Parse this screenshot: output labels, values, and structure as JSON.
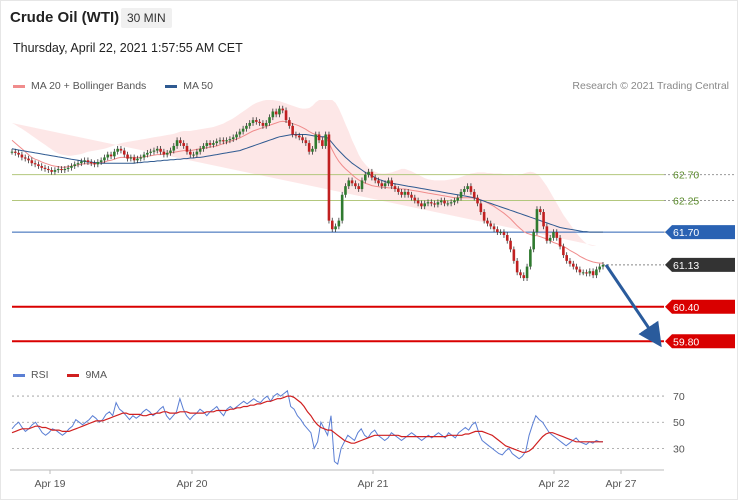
{
  "header": {
    "title": "Crude Oil (WTI)",
    "timeframe": "30 MIN",
    "datetime": "Thursday, April 22, 2021 1:57:55 AM CET",
    "research": "Research © 2021 Trading Central"
  },
  "colors": {
    "ma20": "#f08c8c",
    "ma50": "#2f5a91",
    "band": "#fde3e3",
    "candle_up": "#2f7a2f",
    "candle_down": "#c02020",
    "resistance": "#b3c77d",
    "pivot": "#2a62b3",
    "support": "#d90000",
    "current": "#333333",
    "rsi": "#5b7fd4",
    "rsi_ma": "#d02020"
  },
  "chart_data": [
    {
      "type": "candlestick",
      "legend": [
        {
          "name": "MA 20 + Bollinger Bands",
          "color": "#f08c8c"
        },
        {
          "name": "MA 50",
          "color": "#2f5a91"
        }
      ],
      "x_ticks": [
        "Apr 19",
        "Apr 20",
        "Apr 21",
        "Apr 22",
        "Apr 27"
      ],
      "ylim": [
        59.3,
        64.0
      ],
      "levels": [
        {
          "value": 62.7,
          "label": "62.70",
          "role": "resistance"
        },
        {
          "value": 62.25,
          "label": "62.25",
          "role": "resistance"
        },
        {
          "value": 61.7,
          "label": "61.70",
          "role": "pivot"
        },
        {
          "value": 61.13,
          "label": "61.13",
          "role": "current"
        },
        {
          "value": 60.4,
          "label": "60.40",
          "role": "support"
        },
        {
          "value": 59.8,
          "label": "59.80",
          "role": "support"
        }
      ],
      "close": [
        63.1,
        63.08,
        63.05,
        63.0,
        62.98,
        62.95,
        62.9,
        62.88,
        62.85,
        62.82,
        62.8,
        62.78,
        62.75,
        62.78,
        62.8,
        62.78,
        62.8,
        62.82,
        62.85,
        62.88,
        62.9,
        62.93,
        62.95,
        62.92,
        62.9,
        62.88,
        62.92,
        62.95,
        63.0,
        63.05,
        63.02,
        63.1,
        63.15,
        63.12,
        63.05,
        62.98,
        63.0,
        62.95,
        62.98,
        63.0,
        63.05,
        63.08,
        63.1,
        63.12,
        63.15,
        63.1,
        63.05,
        63.08,
        63.12,
        63.2,
        63.3,
        63.25,
        63.2,
        63.1,
        63.05,
        63.05,
        63.1,
        63.15,
        63.2,
        63.25,
        63.22,
        63.25,
        63.28,
        63.3,
        63.28,
        63.3,
        63.32,
        63.35,
        63.4,
        63.45,
        63.5,
        63.55,
        63.6,
        63.65,
        63.62,
        63.6,
        63.55,
        63.6,
        63.7,
        63.8,
        63.75,
        63.85,
        63.82,
        63.65,
        63.55,
        63.4,
        63.38,
        63.35,
        63.3,
        63.25,
        63.1,
        63.15,
        63.4,
        63.3,
        63.2,
        63.4,
        61.9,
        61.75,
        61.8,
        61.9,
        62.35,
        62.5,
        62.6,
        62.55,
        62.5,
        62.45,
        62.6,
        62.7,
        62.75,
        62.65,
        62.6,
        62.55,
        62.5,
        62.55,
        62.6,
        62.5,
        62.45,
        62.4,
        62.35,
        62.4,
        62.35,
        62.3,
        62.25,
        62.2,
        62.15,
        62.2,
        62.22,
        62.2,
        62.18,
        62.22,
        62.25,
        62.2,
        62.2,
        62.22,
        62.25,
        62.3,
        62.4,
        62.45,
        62.5,
        62.4,
        62.3,
        62.2,
        62.05,
        61.9,
        61.85,
        61.8,
        61.75,
        61.7,
        61.7,
        61.65,
        61.55,
        61.4,
        61.2,
        61.0,
        60.95,
        60.9,
        61.1,
        61.4,
        61.7,
        62.1,
        62.05,
        61.8,
        61.55,
        61.6,
        61.7,
        61.6,
        61.45,
        61.3,
        61.2,
        61.15,
        61.1,
        61.05,
        61.0,
        61.0,
        60.98,
        61.02,
        60.95,
        61.05,
        61.1,
        61.13
      ],
      "ma20": [
        63.3,
        63.25,
        63.2,
        63.15,
        63.1,
        63.05,
        63.0,
        62.97,
        62.95,
        62.92,
        62.9,
        62.88,
        62.86,
        62.85,
        62.84,
        62.83,
        62.83,
        62.84,
        62.85,
        62.86,
        62.87,
        62.88,
        62.89,
        62.89,
        62.89,
        62.89,
        62.9,
        62.91,
        62.92,
        62.94,
        62.95,
        62.97,
        62.99,
        63.0,
        63.0,
        63.0,
        63.0,
        63.0,
        63.0,
        63.0,
        63.01,
        63.02,
        63.03,
        63.04,
        63.05,
        63.05,
        63.06,
        63.07,
        63.08,
        63.09,
        63.1,
        63.11,
        63.12,
        63.12,
        63.12,
        63.13,
        63.14,
        63.15,
        63.16,
        63.17,
        63.18,
        63.19,
        63.2,
        63.22,
        63.24,
        63.26,
        63.28,
        63.3,
        63.32,
        63.34,
        63.37,
        63.4,
        63.43,
        63.46,
        63.48,
        63.5,
        63.52,
        63.54,
        63.56,
        63.58,
        63.6,
        63.62,
        63.63,
        63.62,
        63.61,
        63.59,
        63.57,
        63.55,
        63.52,
        63.49,
        63.45,
        63.42,
        63.4,
        63.38,
        63.35,
        63.35,
        63.25,
        63.13,
        63.02,
        62.93,
        62.86,
        62.8,
        62.75,
        62.7,
        62.65,
        62.61,
        62.58,
        62.55,
        62.53,
        62.51,
        62.5,
        62.49,
        62.48,
        62.48,
        62.47,
        62.47,
        62.46,
        62.46,
        62.45,
        62.45,
        62.44,
        62.43,
        62.42,
        62.41,
        62.4,
        62.39,
        62.38,
        62.37,
        62.36,
        62.35,
        62.34,
        62.33,
        62.32,
        62.31,
        62.3,
        62.3,
        62.3,
        62.3,
        62.3,
        62.3,
        62.29,
        62.28,
        62.26,
        62.24,
        62.21,
        62.18,
        62.15,
        62.11,
        62.07,
        62.03,
        61.98,
        61.93,
        61.87,
        61.81,
        61.76,
        61.71,
        61.68,
        61.66,
        61.64,
        61.64,
        61.62,
        61.6,
        61.58,
        61.55,
        61.52,
        61.5,
        61.48,
        61.45,
        61.42,
        61.38,
        61.35,
        61.32,
        61.28,
        61.25,
        61.22,
        61.2,
        61.18,
        61.17,
        61.16,
        61.16
      ],
      "ma20_upper": [
        63.6,
        63.57,
        63.53,
        63.5,
        63.46,
        63.42,
        63.38,
        63.34,
        63.3,
        63.26,
        63.22,
        63.18,
        63.14,
        63.1,
        63.07,
        63.05,
        63.04,
        63.03,
        63.03,
        63.04,
        63.05,
        63.06,
        63.08,
        63.1,
        63.11,
        63.12,
        63.13,
        63.14,
        63.15,
        63.17,
        63.19,
        63.21,
        63.23,
        63.25,
        63.26,
        63.27,
        63.28,
        63.29,
        63.3,
        63.31,
        63.32,
        63.33,
        63.34,
        63.35,
        63.36,
        63.37,
        63.38,
        63.39,
        63.4,
        63.41,
        63.43,
        63.45,
        63.46,
        63.46,
        63.46,
        63.47,
        63.48,
        63.49,
        63.5,
        63.51,
        63.52,
        63.53,
        63.55,
        63.57,
        63.59,
        63.62,
        63.65,
        63.68,
        63.72,
        63.76,
        63.8,
        63.84,
        63.88,
        63.92,
        63.95,
        63.97,
        63.99,
        64.0,
        64.0,
        64.0,
        63.99,
        63.98,
        63.96,
        63.94,
        63.92,
        63.9,
        63.88,
        63.86,
        63.85,
        63.85,
        63.86,
        63.9,
        63.96,
        64.0,
        64.0,
        64.0,
        64.0,
        64.0,
        63.95,
        63.85,
        63.72,
        63.58,
        63.45,
        63.3,
        63.18,
        63.05,
        62.95,
        62.88,
        62.82,
        62.78,
        62.75,
        62.73,
        62.72,
        62.72,
        62.73,
        62.74,
        62.76,
        62.78,
        62.8,
        62.8,
        62.78,
        62.76,
        62.73,
        62.7,
        62.67,
        62.64,
        62.62,
        62.61,
        62.6,
        62.6,
        62.6,
        62.6,
        62.61,
        62.62,
        62.63,
        62.64,
        62.66,
        62.68,
        62.7,
        62.72,
        62.73,
        62.74,
        62.74,
        62.74,
        62.73,
        62.73,
        62.72,
        62.72,
        62.72,
        62.71,
        62.7,
        62.7,
        62.69,
        62.69,
        62.7,
        62.72,
        62.74,
        62.75,
        62.74,
        62.71,
        62.66,
        62.58,
        62.5,
        62.4,
        62.3,
        62.2,
        62.1,
        62.0,
        61.92,
        61.84,
        61.76,
        61.68,
        61.61,
        61.55,
        61.5,
        61.47,
        61.46,
        61.46
      ],
      "ma20_lower": [
        63.0,
        62.95,
        62.9,
        62.85,
        62.8,
        62.75,
        62.7,
        62.66,
        62.62,
        62.58,
        62.56,
        62.55,
        62.55,
        62.55,
        62.56,
        62.58,
        62.6,
        62.62,
        62.64,
        62.66,
        62.68,
        62.7,
        62.7,
        62.68,
        62.67,
        62.66,
        62.67,
        62.68,
        62.69,
        62.7,
        62.71,
        62.73,
        62.75,
        62.75,
        62.74,
        62.73,
        62.72,
        62.71,
        62.7,
        62.7,
        62.7,
        62.71,
        62.72,
        62.73,
        62.74,
        62.73,
        62.73,
        62.74,
        62.75,
        62.77,
        62.77,
        62.77,
        62.78,
        62.78,
        62.78,
        62.79,
        62.8,
        62.81,
        62.82,
        62.83,
        62.84,
        62.85,
        62.86,
        62.87,
        62.89,
        62.9,
        62.91,
        62.92,
        62.93,
        62.94,
        62.95,
        62.96,
        62.98,
        63.0,
        63.02,
        63.03,
        63.04,
        63.05,
        63.07,
        63.09,
        63.11,
        63.13,
        63.15,
        63.17,
        63.19,
        63.2,
        63.2,
        63.19,
        63.18,
        63.12,
        63.0,
        62.85,
        62.65,
        62.4,
        62.15,
        61.9,
        61.7,
        61.55,
        61.48,
        61.45,
        61.45,
        61.5,
        61.58,
        61.68,
        61.8,
        61.92,
        62.02,
        62.1,
        62.16,
        62.2,
        62.24,
        62.26,
        62.26,
        62.24,
        62.21,
        62.19,
        62.17,
        62.14,
        62.11,
        62.1,
        62.1,
        62.1,
        62.11,
        62.12,
        62.13,
        62.14,
        62.14,
        62.14,
        62.12,
        62.1,
        62.08,
        62.07,
        62.06,
        62.04,
        62.02,
        62.0,
        61.98,
        61.95,
        61.92,
        61.88,
        61.85,
        61.8,
        61.75,
        61.68,
        61.6,
        61.52,
        61.42,
        61.34,
        61.26,
        61.18,
        61.1,
        61.03,
        60.97,
        60.9,
        60.84,
        60.8,
        60.8,
        60.82,
        60.85,
        60.9,
        60.96,
        61.02,
        61.08,
        61.13,
        61.1,
        61.05,
        61.0,
        60.95,
        60.9,
        60.86,
        60.82,
        60.79,
        60.77,
        60.76,
        60.75,
        60.74
      ],
      "ma50": [
        63.15,
        63.14,
        63.13,
        63.12,
        63.11,
        63.1,
        63.09,
        63.08,
        63.07,
        63.06,
        63.05,
        63.04,
        63.03,
        63.02,
        63.01,
        63.0,
        62.99,
        62.98,
        62.97,
        62.96,
        62.95,
        62.94,
        62.93,
        62.92,
        62.92,
        62.91,
        62.91,
        62.9,
        62.9,
        62.9,
        62.9,
        62.9,
        62.9,
        62.9,
        62.9,
        62.9,
        62.9,
        62.9,
        62.91,
        62.91,
        62.92,
        62.92,
        62.93,
        62.93,
        62.94,
        62.94,
        62.95,
        62.95,
        62.96,
        62.96,
        62.97,
        62.97,
        62.98,
        62.98,
        62.99,
        62.99,
        63.0,
        63.0,
        63.01,
        63.02,
        63.03,
        63.04,
        63.05,
        63.06,
        63.07,
        63.08,
        63.09,
        63.1,
        63.11,
        63.12,
        63.14,
        63.16,
        63.18,
        63.2,
        63.22,
        63.24,
        63.26,
        63.28,
        63.3,
        63.32,
        63.34,
        63.36,
        63.37,
        63.38,
        63.39,
        63.4,
        63.4,
        63.4,
        63.4,
        63.4,
        63.39,
        63.38,
        63.37,
        63.36,
        63.36,
        63.36,
        63.32,
        63.25,
        63.18,
        63.12,
        63.06,
        63.0,
        62.95,
        62.9,
        62.86,
        62.82,
        62.78,
        62.74,
        62.71,
        62.68,
        62.65,
        62.62,
        62.6,
        62.58,
        62.56,
        62.55,
        62.54,
        62.53,
        62.52,
        62.51,
        62.5,
        62.49,
        62.48,
        62.47,
        62.46,
        62.45,
        62.44,
        62.43,
        62.42,
        62.41,
        62.4,
        62.39,
        62.38,
        62.37,
        62.36,
        62.35,
        62.34,
        62.33,
        62.32,
        62.31,
        62.3,
        62.28,
        62.26,
        62.24,
        62.22,
        62.2,
        62.18,
        62.16,
        62.14,
        62.12,
        62.1,
        62.08,
        62.06,
        62.04,
        62.02,
        62.0,
        61.98,
        61.96,
        61.94,
        61.92,
        61.9,
        61.88,
        61.86,
        61.84,
        61.82,
        61.8,
        61.78,
        61.77,
        61.76,
        61.75,
        61.74,
        61.73,
        61.72,
        61.71,
        61.71,
        61.7,
        61.7,
        61.7,
        61.7,
        61.7
      ]
    },
    {
      "type": "line",
      "legend": [
        {
          "name": "RSI",
          "color": "#5b7fd4"
        },
        {
          "name": "9MA",
          "color": "#d02020"
        }
      ],
      "y_ticks": [
        "70",
        "50",
        "30"
      ],
      "ylim": [
        15,
        80
      ],
      "rsi": [
        45,
        48,
        50,
        46,
        43,
        45,
        48,
        50,
        46,
        42,
        40,
        42,
        45,
        44,
        42,
        40,
        42,
        45,
        47,
        52,
        50,
        48,
        50,
        52,
        55,
        53,
        50,
        52,
        56,
        58,
        55,
        65,
        60,
        58,
        55,
        52,
        55,
        53,
        55,
        58,
        60,
        58,
        55,
        57,
        60,
        62,
        55,
        52,
        55,
        58,
        68,
        60,
        55,
        52,
        55,
        57,
        60,
        58,
        55,
        58,
        60,
        62,
        58,
        55,
        60,
        62,
        60,
        62,
        64,
        66,
        64,
        66,
        68,
        66,
        65,
        68,
        70,
        66,
        70,
        72,
        70,
        72,
        74,
        62,
        60,
        55,
        52,
        48,
        45,
        42,
        30,
        35,
        50,
        45,
        40,
        55,
        20,
        18,
        30,
        35,
        40,
        38,
        36,
        42,
        45,
        40,
        38,
        42,
        44,
        40,
        38,
        36,
        38,
        42,
        40,
        38,
        36,
        38,
        40,
        42,
        40,
        38,
        36,
        38,
        40,
        38,
        40,
        42,
        40,
        38,
        42,
        40,
        38,
        42,
        44,
        46,
        44,
        48,
        50,
        42,
        36,
        34,
        32,
        30,
        28,
        26,
        25,
        28,
        30,
        26,
        24,
        22,
        24,
        28,
        40,
        48,
        55,
        52,
        50,
        46,
        42,
        40,
        38,
        36,
        34,
        32,
        34,
        36,
        38,
        35,
        34,
        33,
        35,
        34,
        36,
        35,
        35
      ],
      "ma9": [
        42,
        43,
        44,
        45,
        45,
        45,
        46,
        47,
        47,
        46,
        46,
        45,
        44,
        44,
        44,
        43,
        43,
        43,
        44,
        45,
        46,
        47,
        48,
        49,
        50,
        51,
        51,
        51,
        52,
        53,
        54,
        55,
        56,
        57,
        57,
        56,
        56,
        56,
        56,
        55,
        55,
        56,
        56,
        57,
        57,
        58,
        58,
        57,
        57,
        57,
        58,
        58,
        58,
        57,
        57,
        57,
        57,
        57,
        58,
        58,
        58,
        59,
        59,
        59,
        59,
        60,
        60,
        61,
        61,
        62,
        62,
        63,
        63,
        64,
        64,
        65,
        66,
        66,
        67,
        68,
        68,
        69,
        70,
        70,
        69,
        67,
        65,
        62,
        58,
        55,
        51,
        48,
        46,
        45,
        44,
        44,
        42,
        40,
        38,
        36,
        35,
        34,
        34,
        35,
        36,
        37,
        38,
        39,
        40,
        40,
        40,
        40,
        40,
        40,
        40,
        40,
        39,
        39,
        39,
        39,
        39,
        39,
        39,
        39,
        39,
        39,
        39,
        39,
        39,
        39,
        40,
        40,
        40,
        40,
        40,
        41,
        41,
        42,
        43,
        43,
        43,
        42,
        41,
        40,
        38,
        36,
        34,
        32,
        31,
        30,
        29,
        28,
        27,
        27,
        28,
        30,
        33,
        36,
        39,
        41,
        42,
        42,
        41,
        40,
        39,
        38,
        37,
        36,
        35,
        35,
        35,
        35,
        35,
        35,
        35,
        35,
        35
      ]
    }
  ]
}
